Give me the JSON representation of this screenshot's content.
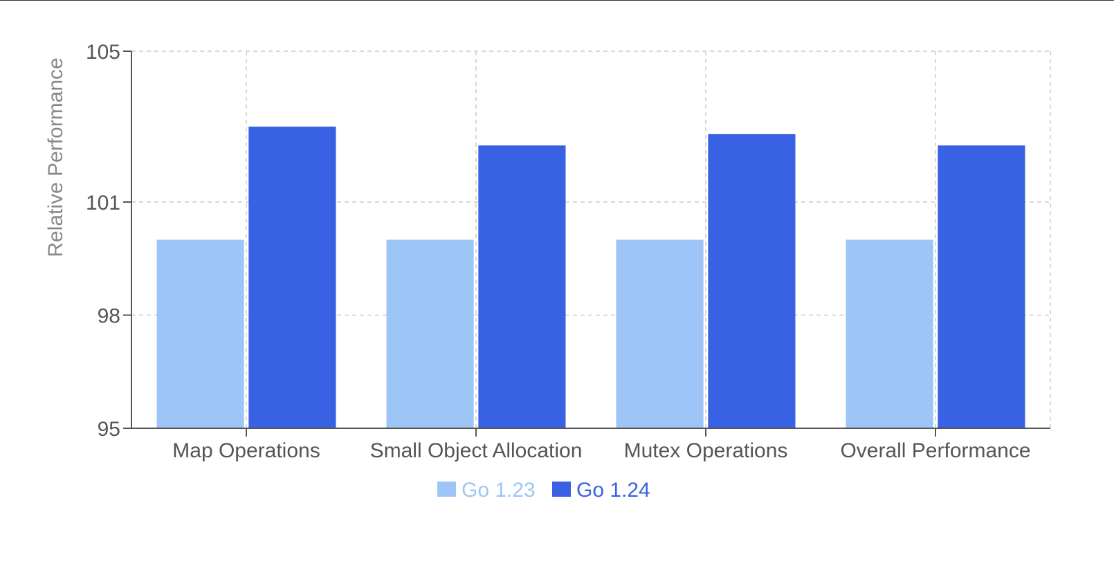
{
  "chart_data": {
    "type": "bar",
    "categories": [
      "Map Operations",
      "Small Object Allocation",
      "Mutex Operations",
      "Overall Performance"
    ],
    "series": [
      {
        "name": "Go 1.23",
        "color": "#9ec5f8",
        "values": [
          100,
          100,
          100,
          100
        ]
      },
      {
        "name": "Go 1.24",
        "color": "#3862e3",
        "values": [
          103,
          102.5,
          102.8,
          102.5
        ]
      }
    ],
    "ylabel": "Relative Performance",
    "xlabel": "",
    "ylim": [
      95,
      105
    ],
    "yticks": [
      95,
      98,
      101,
      105
    ],
    "grid": true,
    "legend_position": "bottom-center"
  }
}
